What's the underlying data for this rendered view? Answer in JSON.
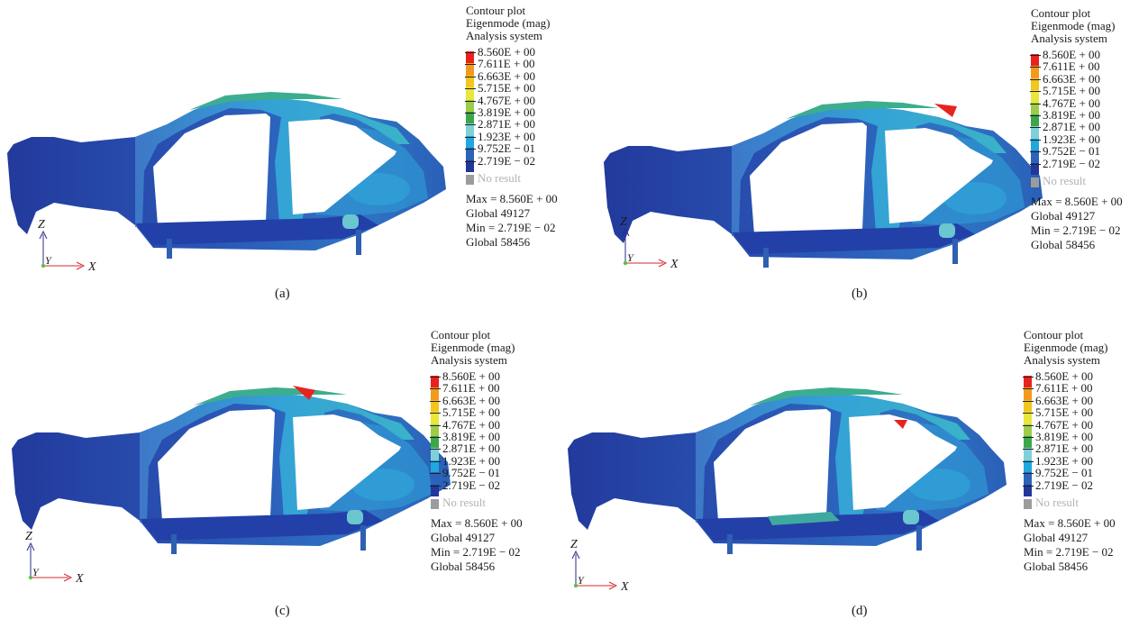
{
  "legend": {
    "title_lines": [
      "Contour plot",
      "Eigenmode (mag)",
      "Analysis system"
    ],
    "levels": [
      "8.560E + 00",
      "7.611E + 00",
      "6.663E + 00",
      "5.715E + 00",
      "4.767E + 00",
      "3.819E + 00",
      "2.871E + 00",
      "1.923E + 00",
      "9.752E − 01",
      "2.719E − 02"
    ],
    "colors": [
      "#e8231f",
      "#f39a1d",
      "#f2c51f",
      "#eae63a",
      "#9ccc4a",
      "#3da64a",
      "#7fd0d8",
      "#1fa7df",
      "#2a64b9",
      "#23369b"
    ],
    "no_result": "No result",
    "no_result_color": "#9c9c9c",
    "max_line": "Max = 8.560E + 00",
    "max_global": "Global 49127",
    "min_line": "Min = 2.719E − 02",
    "min_global": "Global 58456"
  },
  "axes": {
    "z": "Z",
    "y": "Y",
    "x": "X",
    "z_color": "#2b2b8a",
    "x_color": "#d7282f",
    "origin_color": "#5fbf4a"
  },
  "panels": [
    {
      "caption": "(a)"
    },
    {
      "caption": "(b)"
    },
    {
      "caption": "(c)"
    },
    {
      "caption": "(d)"
    }
  ]
}
